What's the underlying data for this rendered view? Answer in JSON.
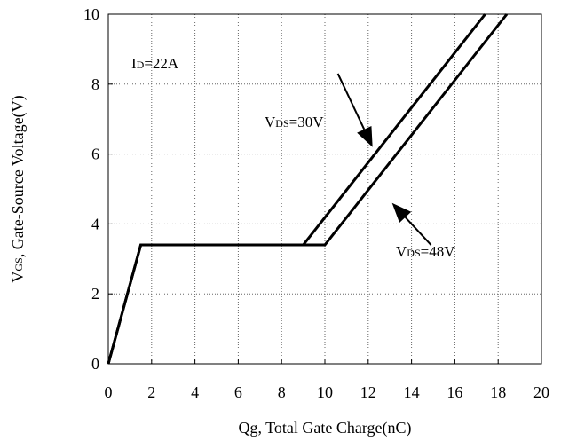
{
  "chart_data": {
    "type": "line",
    "title": "",
    "xlabel": "Qg, Total Gate Charge(nC)",
    "ylabel_main": "V",
    "ylabel_sub": "GS",
    "ylabel_rest": ", Gate-Source Voltage(V)",
    "xlim": [
      0,
      20
    ],
    "ylim": [
      0,
      10
    ],
    "x_ticks": [
      0,
      2,
      4,
      6,
      8,
      10,
      12,
      14,
      16,
      18,
      20
    ],
    "y_ticks": [
      0,
      2,
      4,
      6,
      8,
      10
    ],
    "grid": true,
    "grid_style": "dotted",
    "series": [
      {
        "name": "VDS=30V",
        "color": "#000000",
        "x": [
          0,
          1.5,
          9.0,
          17.4
        ],
        "y": [
          0,
          3.4,
          3.4,
          10
        ]
      },
      {
        "name": "VDS=48V",
        "color": "#000000",
        "x": [
          0,
          1.5,
          10.0,
          18.4
        ],
        "y": [
          0,
          3.4,
          3.4,
          10
        ]
      }
    ],
    "annotations": {
      "id": {
        "main": "I",
        "sub": "D",
        "rest": "=22A"
      },
      "vds30": {
        "main": "V",
        "sub": "DS",
        "rest": "=30V",
        "arrow_from": [
          10.6,
          8.3
        ],
        "arrow_to": [
          12.2,
          6.2
        ]
      },
      "vds48": {
        "main": "V",
        "sub": "DS",
        "rest": "=48V",
        "arrow_from": [
          14.9,
          3.4
        ],
        "arrow_to": [
          13.1,
          4.6
        ]
      }
    }
  }
}
